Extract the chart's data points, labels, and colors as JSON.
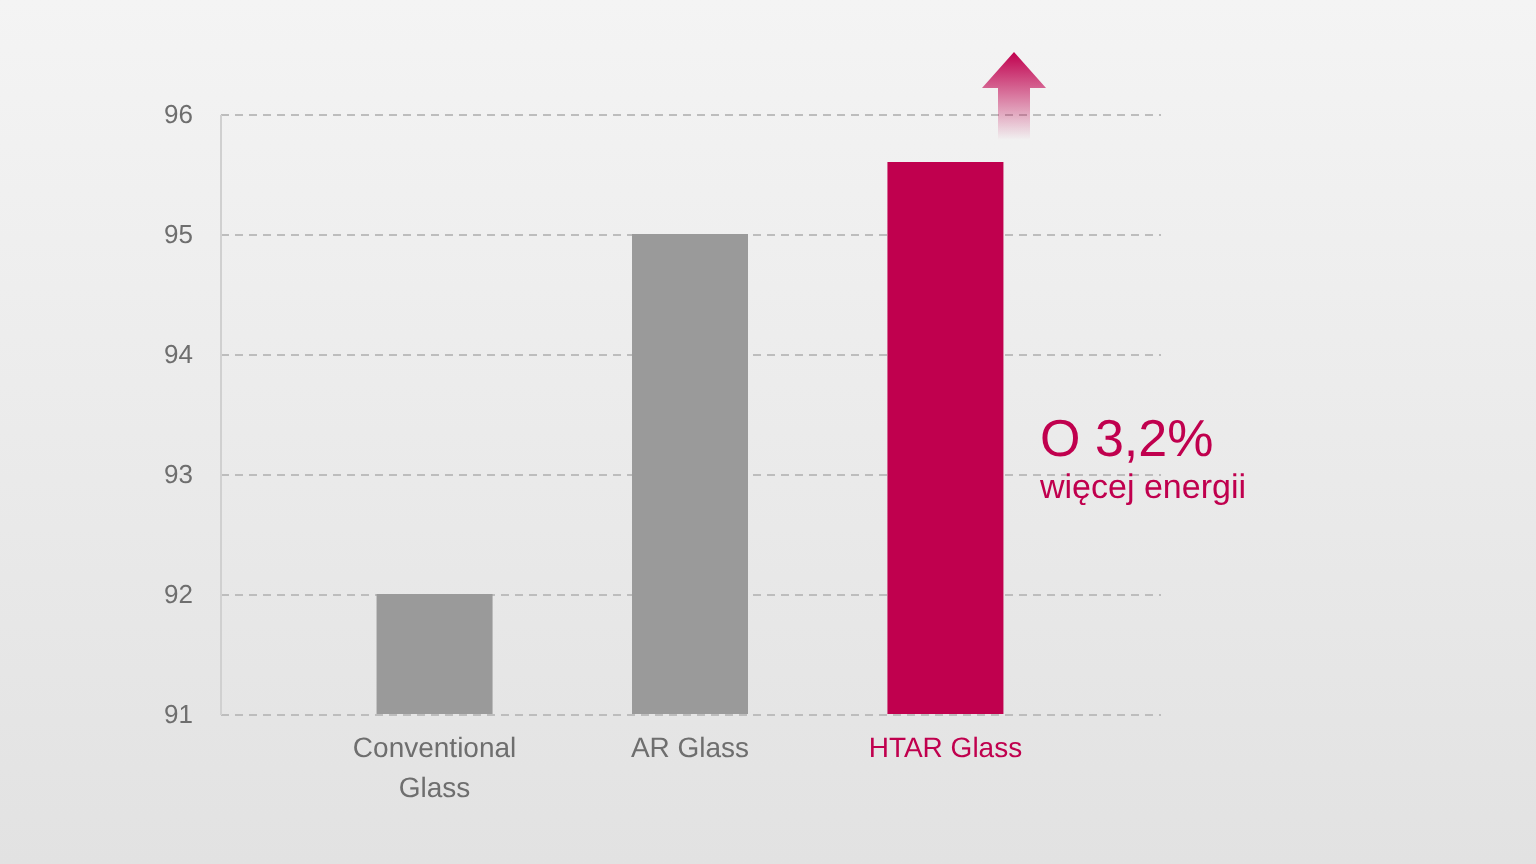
{
  "chart_data": {
    "type": "bar",
    "categories": [
      "Conventional Glass",
      "AR Glass",
      "HTAR Glass"
    ],
    "values": [
      92,
      95,
      95.6
    ],
    "colors": [
      "#9a9a9a",
      "#9a9a9a",
      "#c0004e"
    ],
    "ylim": [
      91,
      96
    ],
    "yticks": [
      91,
      92,
      93,
      94,
      95,
      96
    ],
    "grid": "y",
    "annotations": [
      "O 3,2%",
      "więcej energii"
    ]
  }
}
